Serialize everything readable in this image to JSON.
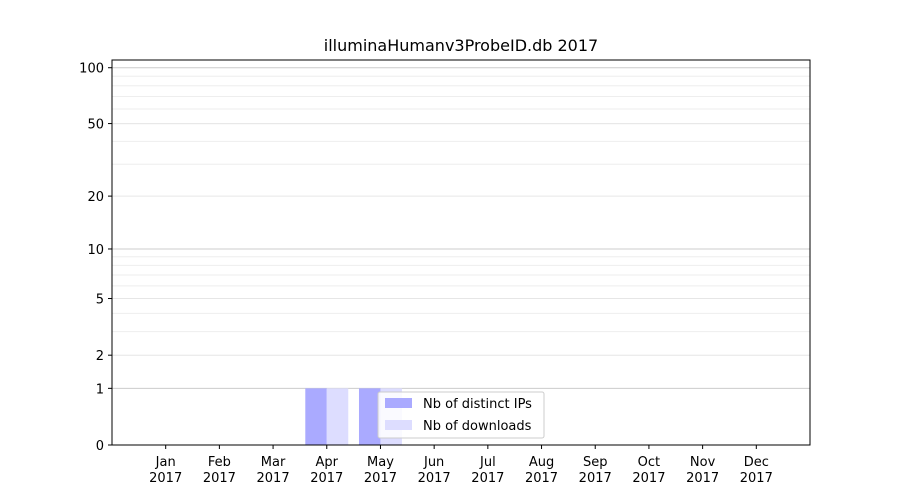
{
  "chart_data": {
    "type": "bar",
    "title": "illuminaHumanv3ProbeID.db 2017",
    "xlabel": "",
    "ylabel": "",
    "categories": [
      {
        "month": "Jan",
        "year": "2017"
      },
      {
        "month": "Feb",
        "year": "2017"
      },
      {
        "month": "Mar",
        "year": "2017"
      },
      {
        "month": "Apr",
        "year": "2017"
      },
      {
        "month": "May",
        "year": "2017"
      },
      {
        "month": "Jun",
        "year": "2017"
      },
      {
        "month": "Jul",
        "year": "2017"
      },
      {
        "month": "Aug",
        "year": "2017"
      },
      {
        "month": "Sep",
        "year": "2017"
      },
      {
        "month": "Oct",
        "year": "2017"
      },
      {
        "month": "Nov",
        "year": "2017"
      },
      {
        "month": "Dec",
        "year": "2017"
      }
    ],
    "series": [
      {
        "name": "Nb of distinct IPs",
        "color": "#aaaaff",
        "values": [
          0,
          0,
          0,
          1,
          1,
          0,
          0,
          0,
          0,
          0,
          0,
          0
        ]
      },
      {
        "name": "Nb of downloads",
        "color": "#ddddff",
        "values": [
          0,
          0,
          0,
          1,
          1,
          0,
          0,
          0,
          0,
          0,
          0,
          0
        ]
      }
    ],
    "y_scale": "log(1+y)",
    "yticks": [
      0,
      1,
      2,
      5,
      10,
      20,
      50,
      100
    ],
    "ylim": [
      0,
      110
    ],
    "grid": true,
    "legend_position": "bottom-center"
  }
}
